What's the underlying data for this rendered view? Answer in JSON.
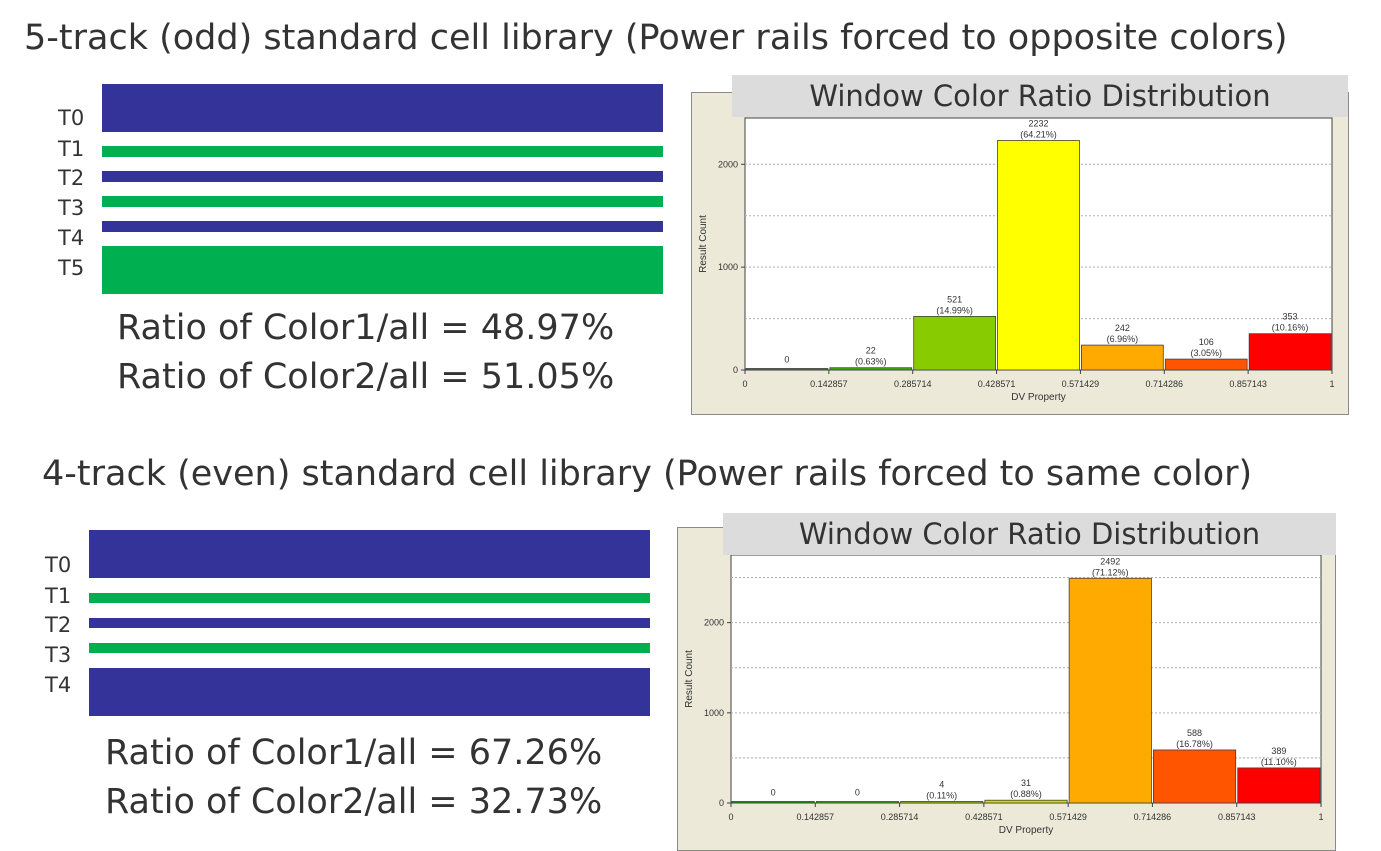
{
  "panels": [
    {
      "heading": "5-track (odd) standard cell library (Power rails forced to opposite colors)",
      "tracks": [
        {
          "label": "T0",
          "color": "#333399"
        },
        {
          "label": "T1",
          "color": "#00b050"
        },
        {
          "label": "T2",
          "color": "#333399"
        },
        {
          "label": "T3",
          "color": "#00b050"
        },
        {
          "label": "T4",
          "color": "#333399"
        },
        {
          "label": "T5",
          "color": "#00b050"
        }
      ],
      "ratio1": "Ratio of Color1/all = 48.97%",
      "ratio2": "Ratio of Color2/all = 51.05%"
    },
    {
      "heading": "4-track (even) standard cell library (Power rails forced to same color)",
      "tracks": [
        {
          "label": "T0",
          "color": "#333399"
        },
        {
          "label": "T1",
          "color": "#00b050"
        },
        {
          "label": "T2",
          "color": "#333399"
        },
        {
          "label": "T3",
          "color": "#00b050"
        },
        {
          "label": "T4",
          "color": "#333399"
        }
      ],
      "ratio1": "Ratio of Color1/all = 67.26%",
      "ratio2": "Ratio of Color2/all = 32.73%"
    }
  ],
  "chart_data": [
    {
      "type": "bar",
      "title": "Window Color Ratio Distribution",
      "xlabel": "DV Property",
      "ylabel": "Result Count",
      "x_ticks": [
        "0",
        "0.142857",
        "0.285714",
        "0.428571",
        "0.571429",
        "0.714286",
        "0.857143",
        "1"
      ],
      "y_ticks": [
        "0",
        "1000",
        "2000"
      ],
      "ylim": [
        0,
        2450
      ],
      "grid": true,
      "bins": [
        {
          "from": 0,
          "to": 0.142857,
          "value": 0,
          "label": "0",
          "pct": "",
          "color": "#00a000"
        },
        {
          "from": 0.142857,
          "to": 0.285714,
          "value": 22,
          "label": "22",
          "pct": "(0.63%)",
          "color": "#3db000"
        },
        {
          "from": 0.285714,
          "to": 0.428571,
          "value": 521,
          "label": "521",
          "pct": "(14.99%)",
          "color": "#88cc00"
        },
        {
          "from": 0.428571,
          "to": 0.571429,
          "value": 2232,
          "label": "2232",
          "pct": "(64.21%)",
          "color": "#ffff00"
        },
        {
          "from": 0.571429,
          "to": 0.714286,
          "value": 242,
          "label": "242",
          "pct": "(6.96%)",
          "color": "#ffaa00"
        },
        {
          "from": 0.714286,
          "to": 0.857143,
          "value": 106,
          "label": "106",
          "pct": "(3.05%)",
          "color": "#ff5500"
        },
        {
          "from": 0.857143,
          "to": 1,
          "value": 353,
          "label": "353",
          "pct": "(10.16%)",
          "color": "#ff0000"
        }
      ]
    },
    {
      "type": "bar",
      "title": "Window Color Ratio Distribution",
      "xlabel": "DV Property",
      "ylabel": "Result Count",
      "x_ticks": [
        "0",
        "0.142857",
        "0.285714",
        "0.428571",
        "0.571429",
        "0.714286",
        "0.857143",
        "1"
      ],
      "y_ticks": [
        "0",
        "1000",
        "2000"
      ],
      "ylim": [
        0,
        2750
      ],
      "grid": true,
      "bins": [
        {
          "from": 0,
          "to": 0.142857,
          "value": 0,
          "label": "0",
          "pct": "",
          "color": "#00a000"
        },
        {
          "from": 0.142857,
          "to": 0.285714,
          "value": 0,
          "label": "0",
          "pct": "",
          "color": "#3db000"
        },
        {
          "from": 0.285714,
          "to": 0.428571,
          "value": 4,
          "label": "4",
          "pct": "(0.11%)",
          "color": "#88cc00"
        },
        {
          "from": 0.428571,
          "to": 0.571429,
          "value": 31,
          "label": "31",
          "pct": "(0.88%)",
          "color": "#ccdd00"
        },
        {
          "from": 0.571429,
          "to": 0.714286,
          "value": 2492,
          "label": "2492",
          "pct": "(71.12%)",
          "color": "#ffaa00"
        },
        {
          "from": 0.714286,
          "to": 0.857143,
          "value": 588,
          "label": "588",
          "pct": "(16.78%)",
          "color": "#ff5500"
        },
        {
          "from": 0.857143,
          "to": 1,
          "value": 389,
          "label": "389",
          "pct": "(11.10%)",
          "color": "#ff0000"
        }
      ]
    }
  ]
}
